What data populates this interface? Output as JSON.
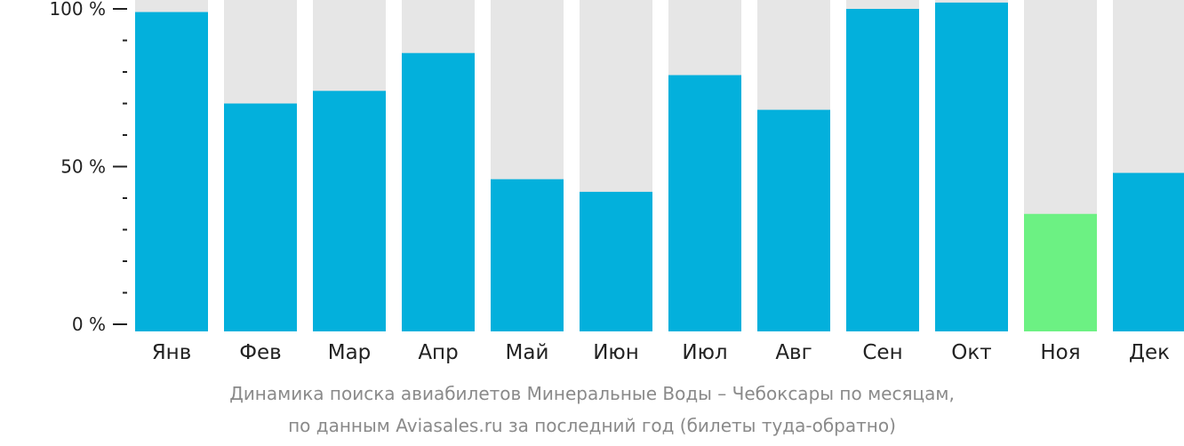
{
  "chart_data": {
    "type": "bar",
    "categories": [
      "Янв",
      "Фев",
      "Мар",
      "Апр",
      "Май",
      "Июн",
      "Июл",
      "Авг",
      "Сен",
      "Окт",
      "Ноя",
      "Дек"
    ],
    "values": [
      99,
      70,
      74,
      86,
      46,
      42,
      79,
      68,
      100,
      102,
      35,
      48
    ],
    "highlight_index": 10,
    "ylim": [
      0,
      100
    ],
    "yticks": [
      {
        "value": 0,
        "label": "0 %"
      },
      {
        "value": 50,
        "label": "50 %"
      },
      {
        "value": 100,
        "label": "100 %"
      }
    ],
    "minor_tick_step": 10,
    "colors": {
      "bar": "#03b0dc",
      "highlight": "#6cf183",
      "background_bar": "#e6e6e6",
      "text": "#222222",
      "caption": "#8a8a8a"
    }
  },
  "caption": {
    "line1": "Динамика поиска авиабилетов Минеральные Воды – Чебоксары по месяцам,",
    "line2": "по данным Aviasales.ru за последний год (билеты туда-обратно)"
  }
}
